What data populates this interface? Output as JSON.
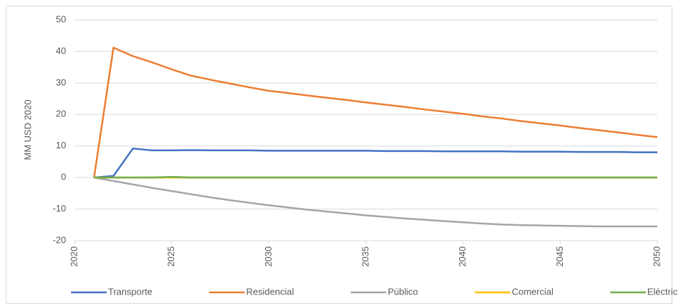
{
  "chart_data": {
    "type": "line",
    "y_label": "MM USD 2020",
    "x": [
      2021,
      2022,
      2023,
      2024,
      2025,
      2026,
      2027,
      2028,
      2029,
      2030,
      2031,
      2032,
      2033,
      2034,
      2035,
      2036,
      2037,
      2038,
      2039,
      2040,
      2041,
      2042,
      2043,
      2044,
      2045,
      2046,
      2047,
      2048,
      2049,
      2050
    ],
    "xlim": [
      2020,
      2050
    ],
    "xticks": [
      2020,
      2025,
      2030,
      2035,
      2040,
      2045,
      2050
    ],
    "ylim": [
      -20,
      50
    ],
    "yticks": [
      -20,
      -10,
      0,
      10,
      20,
      30,
      40,
      50
    ],
    "grid": true,
    "legend": "bottom",
    "series": [
      {
        "name": "Transporte",
        "color": "#4472c4",
        "values": [
          0,
          0.5,
          9.2,
          8.6,
          8.6,
          8.7,
          8.6,
          8.6,
          8.6,
          8.5,
          8.5,
          8.5,
          8.5,
          8.5,
          8.5,
          8.4,
          8.4,
          8.4,
          8.3,
          8.3,
          8.3,
          8.3,
          8.2,
          8.2,
          8.2,
          8.1,
          8.1,
          8.1,
          8.0,
          8.0
        ]
      },
      {
        "name": "Residencial",
        "color": "#ed7d31",
        "values": [
          0,
          41.2,
          38.5,
          36.5,
          34.3,
          32.3,
          31.0,
          29.8,
          28.6,
          27.5,
          26.8,
          26.0,
          25.3,
          24.6,
          23.8,
          23.1,
          22.4,
          21.6,
          20.9,
          20.2,
          19.4,
          18.7,
          17.9,
          17.2,
          16.5,
          15.7,
          15.0,
          14.3,
          13.5,
          12.8
        ]
      },
      {
        "name": "Público",
        "color": "#a5a5a5",
        "values": [
          0,
          -1.1,
          -2.2,
          -3.3,
          -4.3,
          -5.3,
          -6.3,
          -7.2,
          -8.0,
          -8.8,
          -9.5,
          -10.2,
          -10.8,
          -11.4,
          -12.0,
          -12.5,
          -13.0,
          -13.4,
          -13.8,
          -14.2,
          -14.6,
          -14.9,
          -15.1,
          -15.2,
          -15.3,
          -15.4,
          -15.5,
          -15.5,
          -15.5,
          -15.5
        ]
      },
      {
        "name": "Comercial",
        "color": "#ffc000",
        "values": [
          0,
          0,
          0,
          0,
          0,
          0,
          0,
          0,
          0,
          0,
          0,
          0,
          0,
          0,
          0,
          0,
          0,
          0,
          0,
          0,
          0,
          0,
          0,
          0,
          0,
          0,
          0,
          0,
          0,
          0
        ]
      },
      {
        "name": "Eléctrico",
        "color": "#70ad47",
        "values": [
          0,
          0,
          0,
          0,
          0.2,
          0,
          0,
          0,
          0,
          0,
          0,
          0,
          0,
          0,
          0,
          0,
          0,
          0,
          0,
          0,
          0,
          0,
          0,
          0,
          0,
          0,
          0,
          0,
          0,
          0
        ]
      }
    ]
  }
}
